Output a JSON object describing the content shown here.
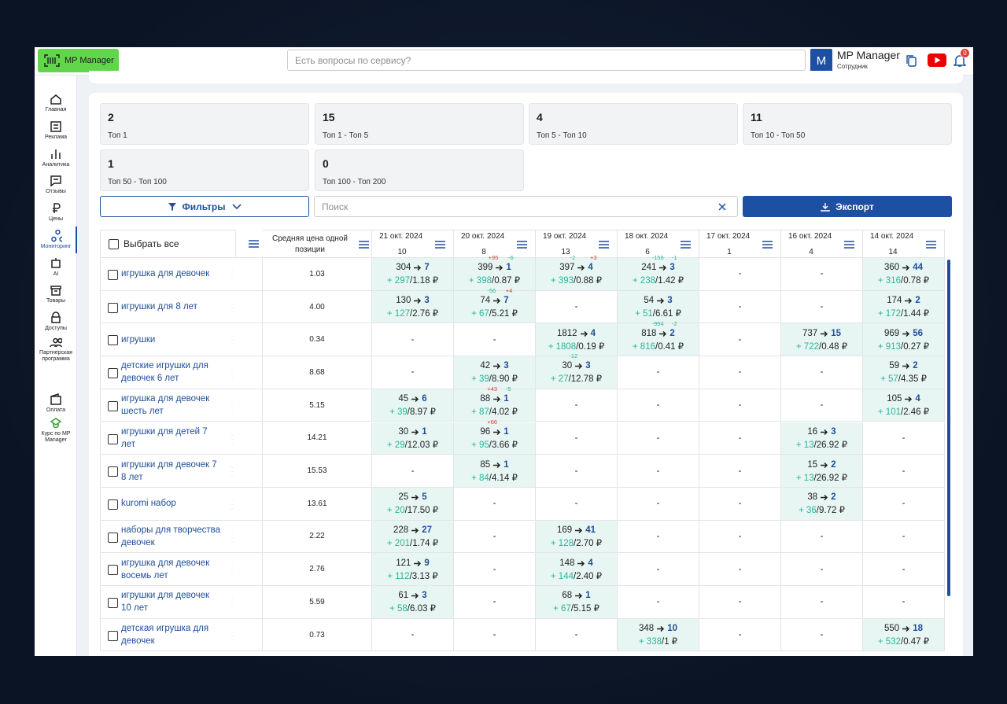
{
  "header": {
    "logo": "MP Manager",
    "search_placeholder": "Есть вопросы по сервису?",
    "avatar": "M",
    "user_name": "MP Manager",
    "user_role": "Сотрудник",
    "notifications": "0"
  },
  "sidebar": {
    "items": [
      "Главная",
      "Реклама",
      "Аналитика",
      "Отзывы",
      "Цены",
      "Мониторинг",
      "AI",
      "Товары",
      "Доступы",
      "Партнерская программа"
    ],
    "active": 5,
    "bottom": [
      "Оплата",
      "Курс по MP Manager"
    ]
  },
  "stats": [
    {
      "value": "2",
      "label": "Топ 1"
    },
    {
      "value": "15",
      "label": "Топ 1 - Топ 5"
    },
    {
      "value": "4",
      "label": "Топ 5 - Топ 10"
    },
    {
      "value": "11",
      "label": "Топ 10 - Топ 50"
    },
    {
      "value": "1",
      "label": "Топ 50 - Топ 100"
    },
    {
      "value": "0",
      "label": "Топ 100 - Топ 200"
    }
  ],
  "toolbar": {
    "filters": "Фильтры",
    "search_placeholder": "Поиск",
    "export": "Экспорт"
  },
  "table": {
    "select_all": "Выбрать все",
    "avg_price_header": "Средняя цена одной позиции",
    "columns": [
      {
        "date": "21 окт. 2024",
        "count": "10"
      },
      {
        "date": "20 окт. 2024",
        "count": "8"
      },
      {
        "date": "19 окт. 2024",
        "count": "13"
      },
      {
        "date": "18 окт. 2024",
        "count": "6"
      },
      {
        "date": "17 окт. 2024",
        "count": "1"
      },
      {
        "date": "16 окт. 2024",
        "count": "4"
      },
      {
        "date": "14 окт. 2024",
        "count": "14"
      }
    ],
    "rows": [
      {
        "query": "игрушка для девочек",
        "avg_price": "1.03",
        "cells": [
          {
            "from": "304",
            "to": "7",
            "gain": "+ 297",
            "price": "/1.18 ₽"
          },
          {
            "from": "399",
            "to": "1",
            "from_change": "+95",
            "to_change": "-6",
            "gain": "+ 398",
            "price": "/0.87 ₽"
          },
          {
            "from": "397",
            "to": "4",
            "from_change": "-2",
            "to_change": "+3",
            "gain": "+ 393",
            "price": "/0.88 ₽"
          },
          {
            "from": "241",
            "to": "3",
            "from_change": "-156",
            "to_change": "-1",
            "gain": "+ 238",
            "price": "/1.42 ₽"
          },
          "-",
          "-",
          {
            "from": "360",
            "to": "44",
            "gain": "+ 316",
            "price": "/0.78 ₽"
          }
        ]
      },
      {
        "query": "игрушки для 8 лет",
        "avg_price": "4.00",
        "cells": [
          {
            "from": "130",
            "to": "3",
            "gain": "+ 127",
            "price": "/2.76 ₽"
          },
          {
            "from": "74",
            "to": "7",
            "from_change": "-56",
            "to_change": "+4",
            "gain": "+ 67",
            "price": "/5.21 ₽"
          },
          "-",
          {
            "from": "54",
            "to": "3",
            "gain": "+ 51",
            "price": "/6.61 ₽"
          },
          "-",
          "-",
          {
            "from": "174",
            "to": "2",
            "gain": "+ 172",
            "price": "/1.44 ₽"
          }
        ]
      },
      {
        "query": "игрушки",
        "avg_price": "0.34",
        "cells": [
          "-",
          "-",
          {
            "from": "1812",
            "to": "4",
            "gain": "+ 1808",
            "price": "/0.19 ₽"
          },
          {
            "from": "818",
            "to": "2",
            "from_change": "-994",
            "to_change": "-2",
            "gain": "+ 816",
            "price": "/0.41 ₽"
          },
          "-",
          {
            "from": "737",
            "to": "15",
            "gain": "+ 722",
            "price": "/0.48 ₽"
          },
          {
            "from": "969",
            "to": "56",
            "gain": "+ 913",
            "price": "/0.27 ₽"
          }
        ]
      },
      {
        "query": "детские игрушки для девочек 6 лет",
        "avg_price": "8.68",
        "cells": [
          "-",
          {
            "from": "42",
            "to": "3",
            "gain": "+ 39",
            "price": "/8.90 ₽"
          },
          {
            "from": "30",
            "to": "3",
            "from_change": "-12",
            "gain": "+ 27",
            "price": "/12.78 ₽"
          },
          "-",
          "-",
          "-",
          {
            "from": "59",
            "to": "2",
            "gain": "+ 57",
            "price": "/4.35 ₽"
          }
        ]
      },
      {
        "query": "игрушка для девочек шесть лет",
        "avg_price": "5.15",
        "cells": [
          {
            "from": "45",
            "to": "6",
            "gain": "+ 39",
            "price": "/8.97 ₽"
          },
          {
            "from": "88",
            "to": "1",
            "from_change": "+43",
            "to_change": "-5",
            "gain": "+ 87",
            "price": "/4.02 ₽"
          },
          "-",
          "-",
          "-",
          "-",
          {
            "from": "105",
            "to": "4",
            "gain": "+ 101",
            "price": "/2.46 ₽"
          }
        ]
      },
      {
        "query": "игрушки для детей 7 лет",
        "avg_price": "14.21",
        "cells": [
          {
            "from": "30",
            "to": "1",
            "gain": "+ 29",
            "price": "/12.03 ₽"
          },
          {
            "from": "96",
            "to": "1",
            "from_change": "+66",
            "gain": "+ 95",
            "price": "/3.66 ₽"
          },
          "-",
          "-",
          "-",
          {
            "from": "16",
            "to": "3",
            "gain": "+ 13",
            "price": "/26.92 ₽"
          },
          "-"
        ]
      },
      {
        "query": "игрушки для девочек 7 8 лет",
        "avg_price": "15.53",
        "cells": [
          "-",
          {
            "from": "85",
            "to": "1",
            "gain": "+ 84",
            "price": "/4.14 ₽"
          },
          "-",
          "-",
          "-",
          {
            "from": "15",
            "to": "2",
            "gain": "+ 13",
            "price": "/26.92 ₽"
          },
          "-"
        ]
      },
      {
        "query": "kuromi набор",
        "avg_price": "13.61",
        "cells": [
          {
            "from": "25",
            "to": "5",
            "gain": "+ 20",
            "price": "/17.50 ₽"
          },
          "-",
          "-",
          "-",
          "-",
          {
            "from": "38",
            "to": "2",
            "gain": "+ 36",
            "price": "/9.72 ₽"
          },
          "-"
        ]
      },
      {
        "query": "наборы для творчества девочек",
        "avg_price": "2.22",
        "cells": [
          {
            "from": "228",
            "to": "27",
            "gain": "+ 201",
            "price": "/1.74 ₽"
          },
          "-",
          {
            "from": "169",
            "to": "41",
            "gain": "+ 128",
            "price": "/2.70 ₽"
          },
          "-",
          "-",
          "-",
          "-"
        ]
      },
      {
        "query": "игрушка для девочек восемь лет",
        "avg_price": "2.76",
        "cells": [
          {
            "from": "121",
            "to": "9",
            "gain": "+ 112",
            "price": "/3.13 ₽"
          },
          "-",
          {
            "from": "148",
            "to": "4",
            "gain": "+ 144",
            "price": "/2.40 ₽"
          },
          "-",
          "-",
          "-",
          "-"
        ]
      },
      {
        "query": "игрушки для девочек 10 лет",
        "avg_price": "5.59",
        "cells": [
          {
            "from": "61",
            "to": "3",
            "gain": "+ 58",
            "price": "/6.03 ₽"
          },
          "-",
          {
            "from": "68",
            "to": "1",
            "gain": "+ 67",
            "price": "/5.15 ₽"
          },
          "-",
          "-",
          "-",
          "-"
        ]
      },
      {
        "query": "детская игрушка для девочек",
        "avg_price": "0.73",
        "cells": [
          "-",
          "-",
          "-",
          {
            "from": "348",
            "to": "10",
            "gain": "+ 338",
            "price": "/1 ₽"
          },
          "-",
          "-",
          {
            "from": "550",
            "to": "18",
            "gain": "+ 532",
            "price": "/0.47 ₽"
          }
        ]
      }
    ]
  }
}
